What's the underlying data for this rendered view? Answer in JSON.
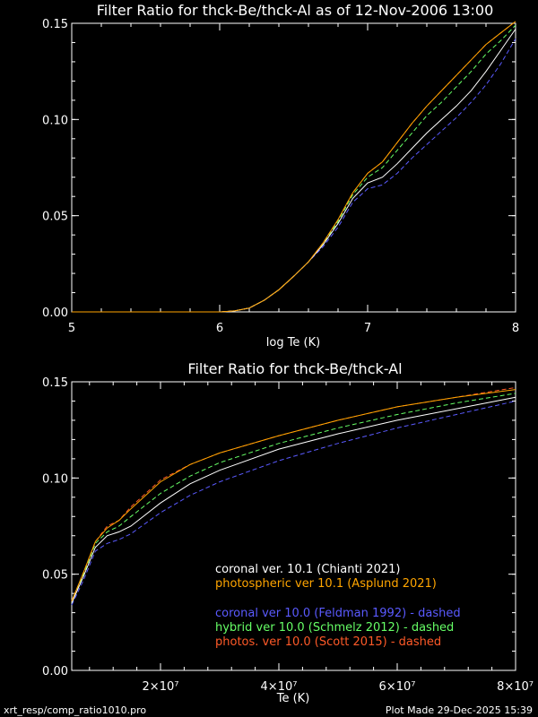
{
  "chart_data": [
    {
      "type": "line",
      "title": "Filter Ratio for thck-Be/thck-Al as of 12-Nov-2006 13:00",
      "xlabel": "log Te (K)",
      "ylabel": "",
      "xlim": [
        5,
        8
      ],
      "ylim": [
        0,
        0.15
      ],
      "xticks": [
        5,
        6,
        7,
        8
      ],
      "xtick_labels": [
        "5",
        "6",
        "7",
        "8"
      ],
      "yticks": [
        0,
        0.05,
        0.1,
        0.15
      ],
      "ytick_labels": [
        "0.00",
        "0.05",
        "0.10",
        "0.15"
      ],
      "series": [
        {
          "color": "#ffffff",
          "dash": false,
          "x": [
            5.0,
            6.0,
            6.1,
            6.2,
            6.3,
            6.4,
            6.5,
            6.6,
            6.7,
            6.8,
            6.9,
            7.0,
            7.1,
            7.2,
            7.3,
            7.4,
            7.5,
            7.6,
            7.7,
            7.8,
            7.9,
            8.0
          ],
          "y": [
            0,
            0,
            0.0005,
            0.002,
            0.006,
            0.0115,
            0.0185,
            0.026,
            0.035,
            0.046,
            0.059,
            0.067,
            0.07,
            0.077,
            0.085,
            0.093,
            0.1,
            0.107,
            0.115,
            0.125,
            0.136,
            0.147
          ]
        },
        {
          "color": "#ffa500",
          "dash": false,
          "x": [
            5.0,
            6.0,
            6.1,
            6.2,
            6.3,
            6.4,
            6.5,
            6.6,
            6.7,
            6.8,
            6.9,
            7.0,
            7.1,
            7.2,
            7.3,
            7.4,
            7.5,
            7.6,
            7.7,
            7.8,
            7.9,
            8.0
          ],
          "y": [
            0,
            0,
            0.0005,
            0.002,
            0.006,
            0.0115,
            0.0185,
            0.026,
            0.036,
            0.048,
            0.062,
            0.072,
            0.078,
            0.088,
            0.098,
            0.107,
            0.115,
            0.123,
            0.131,
            0.139,
            0.145,
            0.151
          ]
        },
        {
          "color": "#5a5aff",
          "dash": true,
          "x": [
            5.0,
            6.0,
            6.1,
            6.2,
            6.3,
            6.4,
            6.5,
            6.6,
            6.7,
            6.8,
            6.9,
            7.0,
            7.1,
            7.2,
            7.3,
            7.4,
            7.5,
            7.6,
            7.7,
            7.8,
            7.9,
            8.0
          ],
          "y": [
            0,
            0,
            0.0005,
            0.002,
            0.006,
            0.0115,
            0.0185,
            0.026,
            0.034,
            0.044,
            0.057,
            0.064,
            0.066,
            0.072,
            0.08,
            0.087,
            0.094,
            0.101,
            0.109,
            0.118,
            0.129,
            0.142
          ]
        },
        {
          "color": "#66ff66",
          "dash": true,
          "x": [
            5.0,
            6.0,
            6.1,
            6.2,
            6.3,
            6.4,
            6.5,
            6.6,
            6.7,
            6.8,
            6.9,
            7.0,
            7.1,
            7.2,
            7.3,
            7.4,
            7.5,
            7.6,
            7.7,
            7.8,
            7.9,
            8.0
          ],
          "y": [
            0,
            0,
            0.0005,
            0.002,
            0.006,
            0.0115,
            0.0185,
            0.026,
            0.0355,
            0.047,
            0.061,
            0.07,
            0.075,
            0.084,
            0.093,
            0.102,
            0.109,
            0.117,
            0.125,
            0.134,
            0.141,
            0.149
          ]
        },
        {
          "color": "#ff5a28",
          "dash": true,
          "x": [
            5.0,
            6.0,
            6.1,
            6.2,
            6.3,
            6.4,
            6.5,
            6.6,
            6.7,
            6.8,
            6.9,
            7.0,
            7.1,
            7.2,
            7.3,
            7.4,
            7.5,
            7.6,
            7.7,
            7.8,
            7.9,
            8.0
          ],
          "y": [
            0,
            0,
            0.0005,
            0.002,
            0.006,
            0.0115,
            0.0185,
            0.026,
            0.036,
            0.048,
            0.062,
            0.072,
            0.078,
            0.088,
            0.098,
            0.107,
            0.115,
            0.123,
            0.131,
            0.139,
            0.145,
            0.151
          ]
        }
      ]
    },
    {
      "type": "line",
      "title": "Filter Ratio for thck-Be/thck-Al",
      "xlabel": "Te (K)",
      "ylabel": "",
      "xlim": [
        5000000,
        80000000
      ],
      "ylim": [
        0,
        0.15
      ],
      "xticks": [
        20000000,
        40000000,
        60000000,
        80000000
      ],
      "xtick_labels": [
        "2×10⁷",
        "4×10⁷",
        "6×10⁷",
        "8×10⁷"
      ],
      "yticks": [
        0,
        0.05,
        0.1,
        0.15
      ],
      "ytick_labels": [
        "0.00",
        "0.05",
        "0.10",
        "0.15"
      ],
      "legend_placement": "bottom-right",
      "series": [
        {
          "name": "coronal ver. 10.1 (Chianti 2021)",
          "color": "#ffffff",
          "dash": false,
          "x": [
            5000000,
            7000000,
            9000000,
            11000000,
            13000000,
            15000000,
            20000000,
            25000000,
            30000000,
            40000000,
            50000000,
            60000000,
            70000000,
            80000000
          ],
          "y": [
            0.035,
            0.049,
            0.064,
            0.07,
            0.072,
            0.075,
            0.087,
            0.097,
            0.104,
            0.115,
            0.123,
            0.13,
            0.136,
            0.142
          ]
        },
        {
          "name": "photospheric ver 10.1 (Asplund 2021)",
          "color": "#ffa500",
          "dash": false,
          "x": [
            5000000,
            7000000,
            9000000,
            11000000,
            13000000,
            15000000,
            20000000,
            25000000,
            30000000,
            40000000,
            50000000,
            60000000,
            70000000,
            80000000
          ],
          "y": [
            0.036,
            0.051,
            0.067,
            0.074,
            0.078,
            0.084,
            0.098,
            0.107,
            0.113,
            0.122,
            0.13,
            0.137,
            0.142,
            0.146
          ]
        },
        {
          "name": "coronal ver 10.0 (Feldman 1992) - dashed",
          "color": "#5a5aff",
          "dash": true,
          "x": [
            5000000,
            7000000,
            9000000,
            11000000,
            13000000,
            15000000,
            20000000,
            25000000,
            30000000,
            40000000,
            50000000,
            60000000,
            70000000,
            80000000
          ],
          "y": [
            0.034,
            0.047,
            0.062,
            0.066,
            0.068,
            0.071,
            0.082,
            0.091,
            0.098,
            0.109,
            0.118,
            0.126,
            0.133,
            0.14
          ]
        },
        {
          "name": "hybrid ver 10.0 (Schmelz 2012) - dashed",
          "color": "#66ff66",
          "dash": true,
          "x": [
            5000000,
            7000000,
            9000000,
            11000000,
            13000000,
            15000000,
            20000000,
            25000000,
            30000000,
            40000000,
            50000000,
            60000000,
            70000000,
            80000000
          ],
          "y": [
            0.035,
            0.05,
            0.066,
            0.072,
            0.075,
            0.08,
            0.092,
            0.101,
            0.108,
            0.118,
            0.126,
            0.133,
            0.139,
            0.144
          ]
        },
        {
          "name": "photos. ver 10.0 (Scott 2015) - dashed",
          "color": "#ff5a28",
          "dash": true,
          "x": [
            5000000,
            7000000,
            9000000,
            11000000,
            13000000,
            15000000,
            20000000,
            25000000,
            30000000,
            40000000,
            50000000,
            60000000,
            70000000,
            80000000
          ],
          "y": [
            0.036,
            0.051,
            0.067,
            0.075,
            0.078,
            0.085,
            0.099,
            0.107,
            0.113,
            0.122,
            0.13,
            0.137,
            0.142,
            0.147
          ]
        }
      ]
    }
  ],
  "footer": {
    "left": "xrt_resp/comp_ratio1010.pro",
    "right": "Plot Made 29-Dec-2025 15:39"
  }
}
